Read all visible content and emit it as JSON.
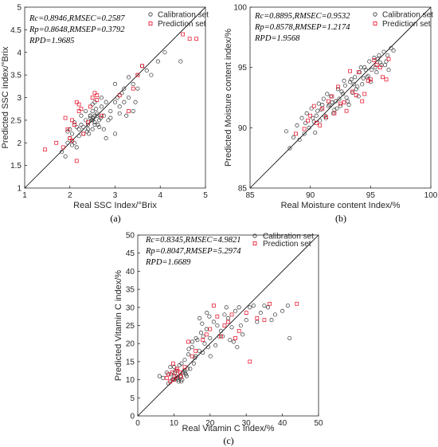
{
  "colors": {
    "calibration": "#333333",
    "prediction": "#e8001c",
    "line": "#000000"
  },
  "chart_data": [
    {
      "type": "scatter",
      "panel": "(a)",
      "xlabel": "Real SSC Index/°Brix",
      "ylabel": "Predicted SSC index/°Brix",
      "xlim": [
        1,
        5
      ],
      "ylim": [
        1,
        5
      ],
      "xticks": [
        1,
        2,
        3,
        4,
        5
      ],
      "yticks": [
        1,
        1.5,
        2,
        2.5,
        3,
        3.5,
        4,
        4.5,
        5
      ],
      "legend_position": "top-right",
      "stats": [
        "Rc=0.8946,RMSEC=0.2587",
        "Rp=0.8648,RMSEP=0.3792",
        "RPD=1.9685"
      ],
      "series": [
        {
          "name": "Calibration set",
          "marker": "circle",
          "x": [
            1.82,
            1.9,
            1.95,
            2.0,
            2.05,
            2.1,
            2.15,
            2.2,
            2.25,
            2.3,
            2.35,
            2.4,
            2.45,
            2.5,
            2.5,
            2.55,
            2.6,
            2.65,
            2.7,
            2.75,
            2.8,
            2.9,
            3.0,
            3.05,
            3.1,
            3.15,
            3.2,
            3.3,
            3.4,
            3.5,
            3.6,
            3.7,
            3.8,
            3.95,
            4.1,
            4.45,
            2.45,
            2.55,
            2.6,
            2.5,
            2.4,
            2.35,
            2.55,
            2.65,
            2.48,
            2.52,
            2.58,
            2.42,
            2.0,
            2.1,
            2.2,
            2.3,
            2.5,
            2.7,
            2.9,
            3.1,
            3.3,
            3.5,
            2.62,
            2.45,
            2.75,
            2.85,
            3.0,
            3.2,
            3.4,
            2.15,
            2.25,
            1.95,
            2.05,
            2.55,
            2.68,
            2.38,
            3.25,
            3.45,
            3.0,
            2.8
          ],
          "y": [
            1.8,
            1.7,
            2.0,
            2.1,
            2.2,
            2.0,
            1.9,
            2.3,
            2.4,
            2.2,
            2.5,
            2.3,
            2.6,
            2.5,
            2.7,
            2.4,
            2.6,
            2.5,
            2.8,
            2.6,
            2.9,
            2.7,
            2.9,
            3.0,
            2.8,
            3.1,
            3.2,
            3.0,
            3.3,
            3.5,
            3.7,
            3.6,
            3.5,
            3.8,
            4.0,
            3.8,
            2.55,
            2.45,
            2.65,
            2.3,
            2.4,
            2.7,
            2.6,
            2.35,
            2.5,
            2.55,
            2.75,
            2.2,
            2.3,
            2.45,
            2.15,
            2.35,
            2.85,
            3.0,
            2.55,
            2.65,
            3.45,
            3.2,
            2.4,
            2.6,
            2.3,
            2.5,
            3.3,
            2.9,
            2.7,
            2.35,
            2.6,
            2.25,
            1.95,
            2.9,
            2.55,
            2.25,
            2.6,
            2.9,
            2.2,
            2.1
          ]
        },
        {
          "name": "Prediction set",
          "marker": "square",
          "x": [
            1.45,
            1.7,
            1.85,
            1.95,
            2.0,
            2.05,
            2.1,
            2.15,
            2.2,
            2.3,
            2.45,
            2.5,
            2.55,
            2.6,
            2.7,
            3.1,
            3.3,
            3.5,
            3.6,
            4.5,
            4.65,
            4.8,
            2.25,
            2.05,
            2.4,
            2.6,
            1.9,
            2.15,
            3.4,
            2.2
          ],
          "y": [
            1.85,
            2.0,
            1.9,
            2.3,
            2.1,
            2.5,
            2.4,
            2.9,
            2.7,
            2.2,
            2.8,
            3.0,
            3.1,
            2.95,
            2.6,
            3.05,
            2.7,
            3.5,
            3.7,
            4.4,
            4.3,
            4.3,
            2.75,
            2.05,
            2.45,
            3.05,
            2.55,
            1.6,
            3.2,
            2.85
          ]
        }
      ]
    },
    {
      "type": "scatter",
      "panel": "(b)",
      "xlabel": "Real Moisture content Index/%",
      "ylabel": "Predicted Moisture content index/%",
      "xlim": [
        85,
        100
      ],
      "ylim": [
        85,
        100
      ],
      "xticks": [
        85,
        90,
        95,
        100
      ],
      "yticks": [
        85,
        90,
        95,
        100
      ],
      "legend_position": "top-right",
      "stats": [
        "Rc=0.8895,RMSEC=0.9532",
        "Rp=0.8578,RMSEP=1.2174",
        "RPD=1.9568"
      ],
      "series": [
        {
          "name": "Calibration set",
          "marker": "circle",
          "x": [
            88.0,
            88.3,
            88.6,
            88.9,
            89.1,
            89.3,
            89.5,
            89.7,
            89.9,
            90.1,
            90.3,
            90.5,
            90.7,
            90.9,
            91.1,
            91.3,
            91.5,
            91.7,
            91.9,
            92.1,
            92.3,
            92.5,
            92.7,
            92.9,
            93.1,
            93.3,
            93.5,
            93.7,
            93.9,
            94.1,
            94.3,
            94.5,
            94.7,
            94.9,
            95.1,
            95.3,
            95.5,
            95.7,
            95.9,
            96.1,
            96.3,
            96.5,
            96.7,
            96.9,
            90.2,
            90.6,
            91.0,
            91.4,
            91.8,
            92.2,
            92.6,
            93.0,
            93.4,
            93.8,
            94.2,
            94.6,
            95.0,
            95.4,
            95.8,
            96.2,
            89.6,
            90.4,
            90.8,
            91.6,
            92.4,
            93.2,
            94.0,
            94.8,
            95.6,
            96.4,
            91.2,
            92.0,
            92.8,
            93.6,
            94.4
          ],
          "y": [
            89.7,
            88.3,
            89.2,
            90.2,
            89.0,
            90.8,
            89.5,
            91.2,
            90.0,
            91.6,
            90.5,
            91.0,
            92.0,
            91.5,
            92.4,
            90.8,
            91.8,
            92.6,
            91.2,
            92.2,
            93.2,
            91.8,
            92.8,
            93.5,
            92.2,
            93.8,
            92.9,
            94.2,
            93.4,
            94.6,
            93.6,
            95.0,
            94.2,
            95.5,
            94.8,
            95.8,
            94.6,
            96.0,
            95.2,
            96.3,
            95.5,
            94.8,
            96.6,
            96.4,
            90.8,
            91.4,
            91.9,
            92.8,
            92.1,
            91.6,
            93.0,
            92.5,
            94.0,
            93.2,
            95.0,
            94.8,
            93.8,
            95.0,
            95.4,
            95.2,
            90.4,
            89.6,
            90.6,
            91.9,
            92.4,
            91.9,
            92.6,
            94.3,
            95.7,
            96.0,
            91.0,
            91.5,
            93.9,
            93.6,
            94.1
          ]
        },
        {
          "name": "Prediction set",
          "marker": "square",
          "x": [
            88.8,
            89.5,
            90.0,
            90.5,
            91.0,
            91.5,
            92.0,
            92.5,
            93.0,
            93.5,
            94.0,
            94.5,
            95.0,
            95.5,
            96.0,
            96.5,
            90.8,
            91.8,
            92.8,
            93.8,
            94.8,
            95.8,
            91.3,
            92.3,
            93.3,
            89.8,
            90.3,
            94.3,
            95.3,
            96.3
          ],
          "y": [
            89.5,
            89.9,
            91.0,
            90.4,
            91.6,
            92.2,
            91.2,
            92.0,
            91.4,
            93.0,
            94.6,
            92.8,
            94.0,
            95.2,
            94.2,
            95.7,
            90.2,
            92.6,
            92.1,
            92.7,
            93.9,
            95.0,
            90.9,
            93.4,
            94.7,
            90.6,
            91.8,
            92.2,
            95.6,
            94.0
          ]
        }
      ]
    },
    {
      "type": "scatter",
      "panel": "(c)",
      "xlabel": "Real Vitamin C Index/%",
      "ylabel": "Predicted Vitamin C index/%",
      "xlim": [
        0,
        50
      ],
      "ylim": [
        0,
        50
      ],
      "xticks": [
        0,
        10,
        20,
        30,
        40,
        50
      ],
      "yticks": [
        0,
        5,
        10,
        15,
        20,
        25,
        30,
        35,
        40,
        45,
        50
      ],
      "legend_position": "top-right",
      "stats": [
        "Rc=0.8345,RMSEC=4.9821",
        "Rp=0.8047,RMSEP=5.2974",
        "RPD=1.6689"
      ],
      "series": [
        {
          "name": "Calibration set",
          "marker": "circle",
          "x": [
            6.0,
            7.0,
            8.0,
            8.5,
            9.0,
            9.5,
            10.0,
            10.5,
            11.0,
            11.5,
            12.0,
            12.5,
            13.0,
            13.5,
            14.0,
            14.5,
            15.0,
            15.5,
            16.0,
            16.5,
            17.0,
            17.5,
            18.0,
            18.5,
            19.0,
            19.5,
            20.0,
            21.0,
            22.0,
            23.0,
            24.0,
            25.0,
            26.0,
            27.0,
            28.0,
            30.0,
            32.0,
            34.0,
            36.0,
            38.0,
            40.0,
            41.5,
            42.0,
            9.2,
            9.8,
            10.3,
            10.8,
            11.3,
            11.8,
            12.3,
            12.8,
            13.3,
            10.1,
            11.1,
            12.1,
            13.1,
            14.1,
            15.1,
            16.1,
            17.1,
            18.1,
            19.1,
            20.1,
            22.5,
            24.5,
            26.5,
            28.5,
            31.0,
            33.0,
            35.0,
            37.0,
            29.0,
            21.5,
            23.5,
            25.5,
            27.5,
            15.8,
            13.8,
            17.8,
            19.8
          ],
          "y": [
            11.0,
            10.5,
            12.0,
            9.0,
            13.5,
            10.0,
            11.0,
            12.5,
            10.5,
            14.0,
            9.5,
            12.0,
            15.5,
            11.0,
            17.0,
            13.0,
            19.0,
            14.5,
            16.5,
            21.0,
            18.0,
            23.0,
            17.5,
            20.0,
            24.0,
            19.0,
            21.5,
            26.0,
            25.0,
            23.5,
            28.0,
            27.0,
            24.5,
            29.0,
            30.0,
            26.5,
            30.5,
            28.5,
            30.0,
            28.0,
            29.0,
            30.5,
            21.5,
            11.5,
            10.0,
            12.0,
            10.5,
            9.5,
            11.0,
            10.0,
            12.5,
            11.5,
            13.5,
            10.0,
            14.5,
            12.0,
            18.5,
            20.5,
            21.5,
            27.0,
            22.0,
            28.5,
            16.5,
            22.0,
            30.0,
            20.5,
            25.0,
            30.0,
            26.0,
            30.5,
            26.5,
            22.5,
            19.5,
            22.0,
            21.0,
            19.0,
            16.0,
            13.0,
            25.5,
            27.5
          ]
        },
        {
          "name": "Prediction set",
          "marker": "square",
          "x": [
            8.0,
            8.5,
            9.0,
            9.5,
            10.0,
            10.5,
            11.0,
            12.0,
            13.0,
            14.0,
            15.0,
            16.0,
            18.0,
            19.0,
            20.0,
            21.0,
            22.0,
            23.0,
            24.0,
            25.0,
            26.0,
            27.0,
            28.0,
            30.0,
            31.0,
            33.0,
            35.0,
            36.5,
            44.0,
            9.8,
            10.8,
            11.8
          ],
          "y": [
            10.5,
            11.5,
            9.5,
            12.0,
            10.0,
            11.0,
            12.5,
            10.8,
            13.5,
            20.5,
            16.5,
            18.0,
            21.0,
            22.5,
            24.0,
            30.5,
            27.5,
            22.0,
            25.0,
            26.0,
            28.0,
            21.5,
            23.5,
            28.5,
            15.0,
            27.0,
            26.5,
            31.0,
            31.0,
            14.5,
            13.0,
            12.0
          ]
        }
      ]
    }
  ]
}
